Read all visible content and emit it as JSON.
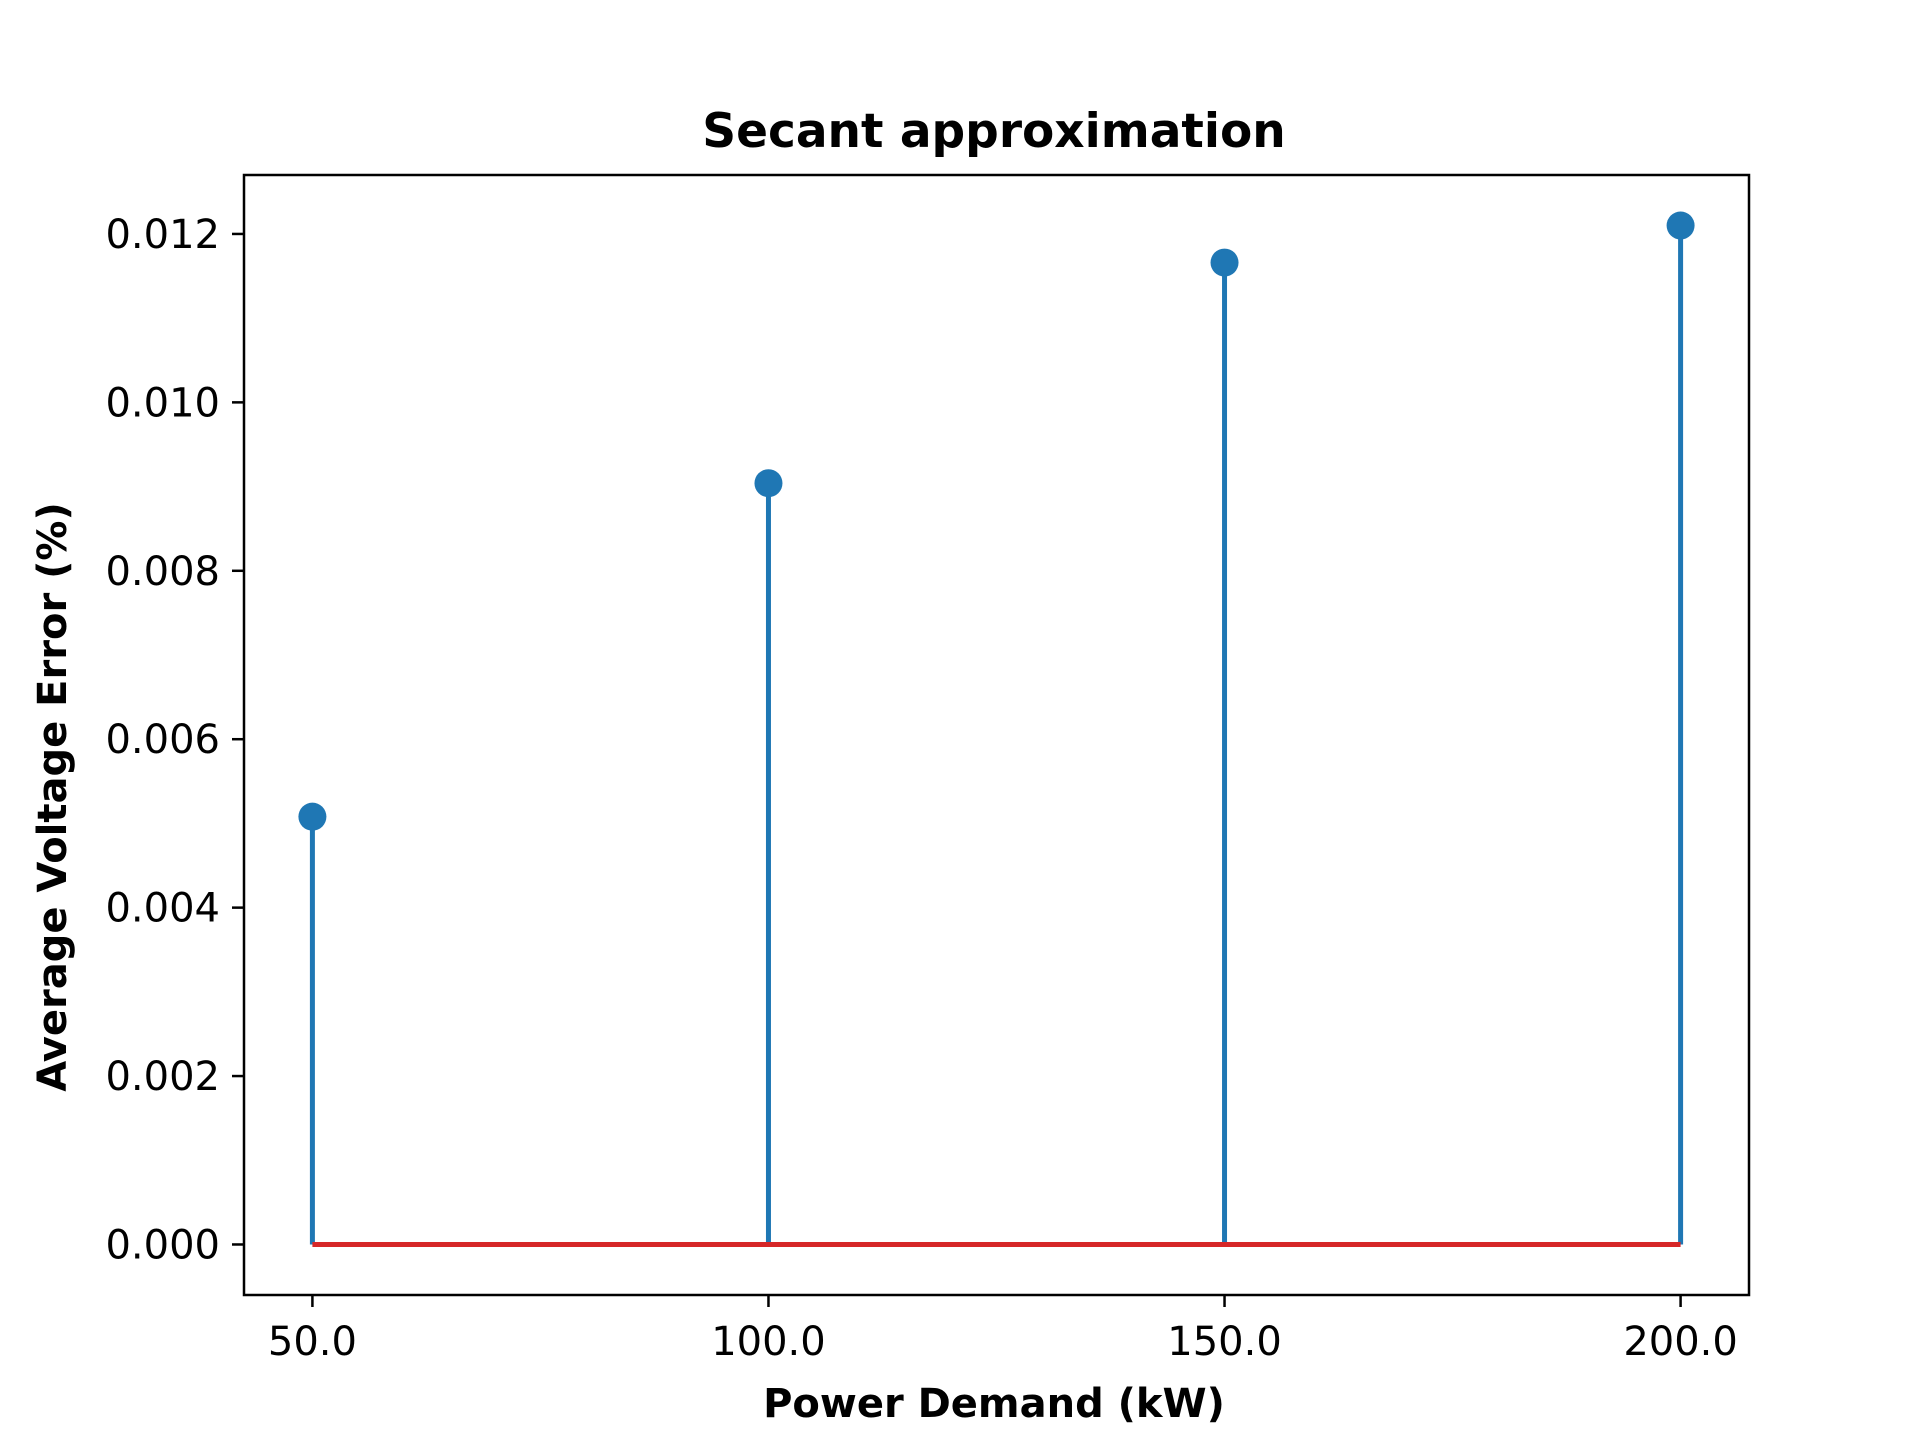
{
  "chart_data": {
    "type": "stem",
    "title": "Secant approximation",
    "xlabel": "Power Demand (kW)",
    "ylabel": "Average Voltage Error (%)",
    "x": [
      50.0,
      100.0,
      150.0,
      200.0
    ],
    "values": [
      0.00508,
      0.00904,
      0.01166,
      0.0121
    ],
    "x_ticks": [
      "50.0",
      "100.0",
      "150.0",
      "200.0"
    ],
    "y_ticks": [
      "0.000",
      "0.002",
      "0.004",
      "0.006",
      "0.008",
      "0.010",
      "0.012"
    ],
    "xlim": [
      42.5,
      207.5
    ],
    "ylim": [
      -0.0006,
      0.0127
    ],
    "baseline": 0.0,
    "grid": false,
    "colors": {
      "stem": "#1f77b4",
      "marker": "#1f77b4",
      "baseline": "#d62728",
      "axes": "#000000"
    }
  }
}
